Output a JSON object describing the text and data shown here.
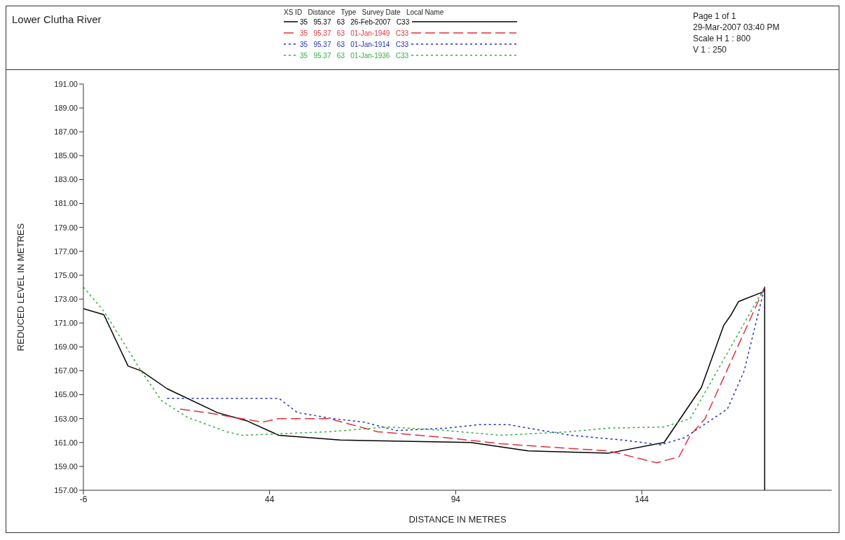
{
  "chart_data": {
    "type": "line",
    "title": "Lower Clutha River",
    "xlabel": "DISTANCE IN METRES",
    "ylabel": "REDUCED LEVEL IN METRES",
    "legend_title": "XS ID   Distance   Type   Survey Date   Local Name",
    "legend": "top",
    "grid": false,
    "marker": "none",
    "annotations": [
      "Page 1 of 1",
      "29-Mar-2007 03:40 PM",
      "Scale H 1 : 800",
      "V 1 : 250"
    ],
    "xlim": [
      -6,
      195
    ],
    "xticks": [
      -6,
      44,
      94,
      144
    ],
    "ylim": [
      157,
      191
    ],
    "yticks": [
      {
        "value": 191,
        "label": "191.00"
      },
      {
        "value": 189,
        "label": "189.00"
      },
      {
        "value": 187,
        "label": "187.00"
      },
      {
        "value": 185,
        "label": "185.00"
      },
      {
        "value": 183,
        "label": "183.00"
      },
      {
        "value": 181,
        "label": "181.00"
      },
      {
        "value": 179,
        "label": "179.00"
      },
      {
        "value": 177,
        "label": "177.00"
      },
      {
        "value": 175,
        "label": "175.00"
      },
      {
        "value": 173,
        "label": "173.00"
      },
      {
        "value": 171,
        "label": "171.00"
      },
      {
        "value": 169,
        "label": "169.00"
      },
      {
        "value": 167,
        "label": "167.00"
      },
      {
        "value": 165,
        "label": "165.00"
      },
      {
        "value": 163,
        "label": "163.00"
      },
      {
        "value": 161,
        "label": "161.00"
      },
      {
        "value": 159,
        "label": "159.00"
      },
      {
        "value": 157,
        "label": "157.00"
      }
    ],
    "series": [
      {
        "name": "35   95.37   63   26-Feb-2007   C33",
        "color": "#000000",
        "line_style": "solid",
        "x": [
          -6,
          -0.5,
          6,
          9.5,
          16.5,
          30,
          38,
          46.5,
          63,
          98,
          113.5,
          135,
          150,
          160,
          166,
          168,
          170,
          176.5,
          177,
          177
        ],
        "values": [
          172.2,
          171.7,
          167.4,
          167,
          165.5,
          163.5,
          162.8,
          161.6,
          161.2,
          161,
          160.3,
          160.1,
          161,
          165.6,
          170.8,
          171.7,
          172.8,
          173.6,
          174,
          157
        ]
      },
      {
        "name": "35   95.37   63   01-Jan-1949   C33",
        "color": "#e0303a",
        "line_style": "dashed",
        "x": [
          20,
          27,
          36.5,
          42,
          46.5,
          60,
          66,
          73,
          91.5,
          106,
          124.5,
          135,
          148,
          154,
          157,
          161,
          177
        ],
        "values": [
          163.8,
          163.5,
          163,
          162.7,
          163,
          163,
          162.5,
          161.9,
          161.4,
          160.9,
          160.5,
          160.3,
          159.3,
          159.8,
          161.6,
          163,
          174
        ]
      },
      {
        "name": "35   95.37   63   01-Jan-1914   C33",
        "color": "#2030c0",
        "line_style": "dotted",
        "x": [
          16.5,
          46.5,
          51.5,
          61,
          69.5,
          78,
          91.5,
          100.5,
          108,
          113.5,
          125,
          139,
          149,
          155.5,
          167,
          171.5,
          177
        ],
        "values": [
          164.7,
          164.7,
          163.5,
          163,
          162.7,
          162,
          162.2,
          162.5,
          162.5,
          162.2,
          161.6,
          161.2,
          160.8,
          161.4,
          163.8,
          167,
          174
        ]
      },
      {
        "name": "35   95.37   63   01-Jan-1936   C33",
        "color": "#30b040",
        "line_style": "dotted",
        "x": [
          -6,
          -0.5,
          9.5,
          15,
          22,
          32.5,
          36.5,
          60,
          76,
          91.5,
          106,
          124.5,
          135,
          150,
          157,
          177
        ],
        "values": [
          174,
          172,
          167,
          164.5,
          163.1,
          161.9,
          161.6,
          161.9,
          162.3,
          162,
          161.6,
          161.9,
          162.2,
          162.3,
          163,
          174
        ]
      }
    ]
  }
}
